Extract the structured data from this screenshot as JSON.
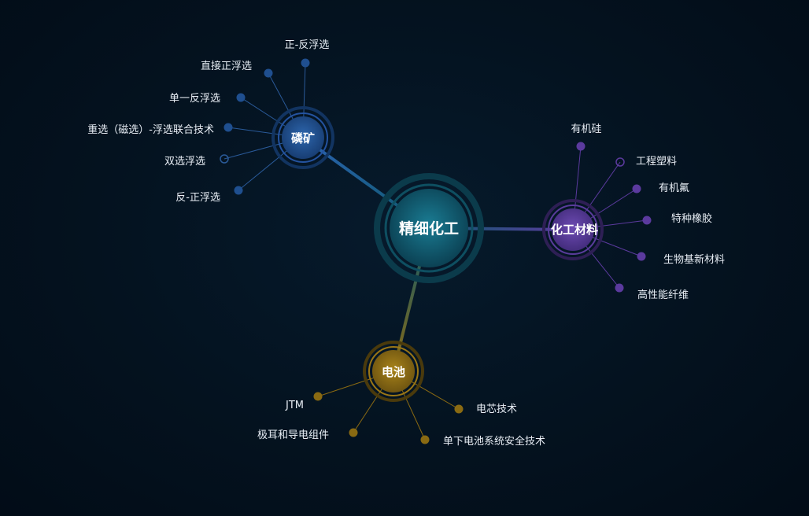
{
  "center": {
    "label": "精细化工",
    "color": "#0f5a6e"
  },
  "hubs": [
    {
      "key": "linkuang",
      "label": "磷矿",
      "color": "#1f4f8f",
      "leaves": [
        "正-反浮选",
        "直接正浮选",
        "单一反浮选",
        "重选（磁选）-浮选联合技术",
        "双选浮选",
        "反-正浮选"
      ]
    },
    {
      "key": "huagong",
      "label": "化工材料",
      "color": "#5b3a9e",
      "leaves": [
        "有机硅",
        "工程塑料",
        "有机氟",
        "特种橡胶",
        "生物基新材料",
        "高性能纤维"
      ]
    },
    {
      "key": "dianchi",
      "label": "电池",
      "color": "#8a6a12",
      "leaves": [
        "JTM",
        "电芯技术",
        "极耳和导电组件",
        "单下电池系统安全技术"
      ]
    }
  ]
}
